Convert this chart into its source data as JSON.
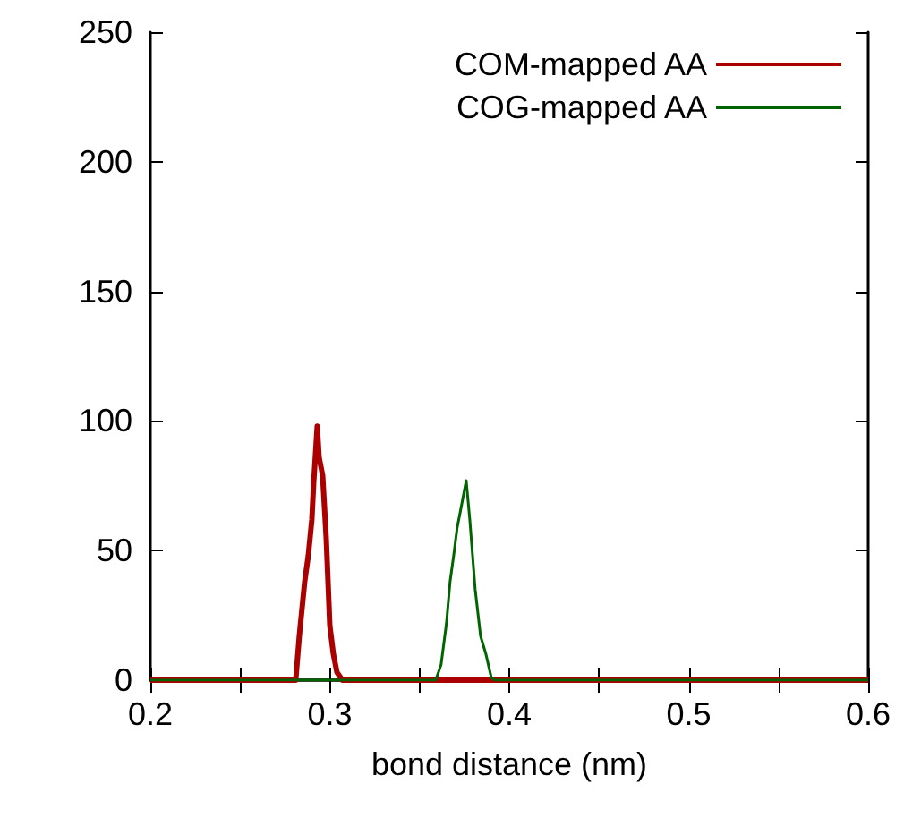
{
  "chart_data": {
    "type": "line",
    "xlabel": "bond distance (nm)",
    "xlim": [
      0.2,
      0.6
    ],
    "ylim": [
      0,
      250
    ],
    "xticks": [
      0.2,
      {
        "value": 0.25,
        "label": null
      },
      0.3,
      {
        "value": 0.35,
        "label": null
      },
      0.4,
      {
        "value": 0.45,
        "label": null
      },
      0.5,
      {
        "value": 0.55,
        "label": null
      },
      0.6
    ],
    "yticks": [
      0,
      50,
      100,
      150,
      200,
      250
    ],
    "grid": false,
    "legend": "top right",
    "marker": "none",
    "line_style": "solid",
    "series": [
      {
        "name": "COM-mapped AA",
        "color": "#aa0000",
        "x": [
          0.2,
          0.281,
          0.283,
          0.286,
          0.288,
          0.29,
          0.291,
          0.293,
          0.294,
          0.296,
          0.298,
          0.3,
          0.302,
          0.304,
          0.307,
          0.6
        ],
        "values": [
          0,
          0,
          17,
          38,
          48,
          62,
          76,
          98,
          86,
          79,
          55,
          21,
          10,
          3,
          0,
          0
        ]
      },
      {
        "name": "COG-mapped AA",
        "color": "#006400",
        "x": [
          0.2,
          0.359,
          0.362,
          0.365,
          0.367,
          0.369,
          0.371,
          0.373,
          0.376,
          0.378,
          0.381,
          0.384,
          0.387,
          0.39,
          0.392,
          0.6
        ],
        "values": [
          0,
          0,
          6,
          22,
          38,
          48,
          59,
          66,
          77,
          62,
          35,
          17,
          10,
          1,
          0,
          0
        ]
      }
    ]
  }
}
